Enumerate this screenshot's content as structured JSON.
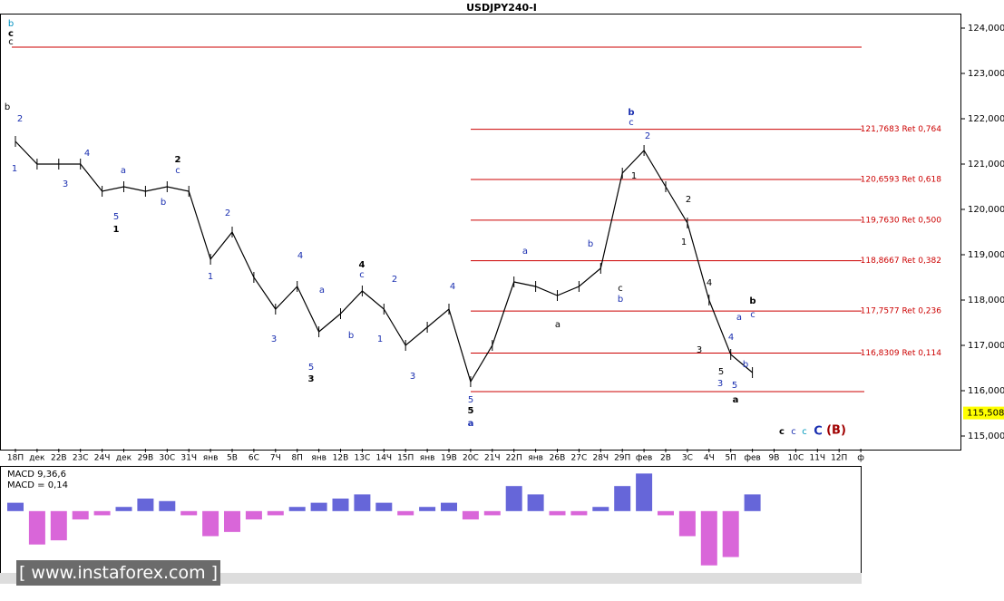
{
  "chart_data": {
    "type": "line",
    "title": "USDJPY240-I",
    "categories": [
      "18П",
      "дек",
      "22В",
      "23С",
      "24Ч",
      "дек",
      "29В",
      "30С",
      "31Ч",
      "янв",
      "5В",
      "6С",
      "7Ч",
      "8П",
      "янв",
      "12В",
      "13С",
      "14Ч",
      "15П",
      "янв",
      "19В",
      "20С",
      "21Ч",
      "22П",
      "янв",
      "26В",
      "27С",
      "28Ч",
      "29П",
      "фев",
      "2В",
      "3С",
      "4Ч",
      "5П",
      "фев",
      "9В",
      "10С",
      "11Ч",
      "12П",
      "ф"
    ],
    "series": [
      {
        "name": "USDJPY240-I",
        "color": "#000000",
        "values": [
          121.5,
          121.0,
          121.0,
          121.0,
          120.4,
          120.5,
          120.4,
          120.5,
          120.4,
          118.9,
          119.5,
          118.5,
          117.8,
          118.3,
          117.3,
          117.7,
          118.2,
          117.8,
          117.0,
          117.4,
          117.8,
          116.2,
          117.0,
          118.4,
          118.3,
          118.1,
          118.3,
          118.7,
          120.8,
          121.3,
          120.5,
          119.7,
          118.0,
          116.8,
          116.4,
          null,
          null,
          null,
          null,
          null
        ]
      }
    ],
    "ylim": [
      114.72,
      124.32
    ],
    "yticks": [
      {
        "value": 115,
        "label": "115,000"
      },
      {
        "value": 116,
        "label": "116,000"
      },
      {
        "value": 117,
        "label": "117,000"
      },
      {
        "value": 118,
        "label": "118,000"
      },
      {
        "value": 119,
        "label": "119,000"
      },
      {
        "value": 120,
        "label": "120,000"
      },
      {
        "value": 121,
        "label": "121,000"
      },
      {
        "value": 122,
        "label": "122,000"
      },
      {
        "value": 123,
        "label": "123,000"
      },
      {
        "value": 124,
        "label": "124,000"
      }
    ],
    "last_price": {
      "value": 115.508,
      "label": "115,508"
    },
    "levels": [
      {
        "value": 121.7683,
        "label": "121,7683 Ret 0,764"
      },
      {
        "value": 120.6593,
        "label": "120,6593 Ret 0,618"
      },
      {
        "value": 119.763,
        "label": "119,7630 Ret 0,500"
      },
      {
        "value": 118.8667,
        "label": "118,8667 Ret 0,382"
      },
      {
        "value": 117.7577,
        "label": "117,7577 Ret 0,236"
      },
      {
        "value": 116.8309,
        "label": "116,8309 Ret 0,114"
      }
    ],
    "level_color": "#cc0000",
    "lines": [
      123.58,
      115.98
    ],
    "annotations": [
      {
        "text": "b",
        "color": "#0090c0"
      },
      {
        "text": "c",
        "color": "#000"
      },
      {
        "text": "c",
        "color": "#000"
      },
      {
        "text": "2",
        "color": "#1a2fb0"
      },
      {
        "text": "1",
        "color": "#1a2fb0"
      },
      {
        "text": "b",
        "color": "#000"
      },
      {
        "text": "3",
        "color": "#1a2fb0"
      },
      {
        "text": "4",
        "color": "#1a2fb0"
      },
      {
        "text": "5",
        "color": "#1a2fb0"
      },
      {
        "text": "1",
        "color": "#000"
      },
      {
        "text": "a",
        "color": "#1a2fb0"
      },
      {
        "text": "b",
        "color": "#1a2fb0"
      },
      {
        "text": "2",
        "color": "#000"
      },
      {
        "text": "c",
        "color": "#1a2fb0"
      },
      {
        "text": "1",
        "color": "#1a2fb0"
      },
      {
        "text": "2",
        "color": "#1a2fb0"
      },
      {
        "text": "3",
        "color": "#1a2fb0"
      },
      {
        "text": "4",
        "color": "#1a2fb0"
      },
      {
        "text": "5",
        "color": "#1a2fb0"
      },
      {
        "text": "3",
        "color": "#000"
      },
      {
        "text": "a",
        "color": "#1a2fb0"
      },
      {
        "text": "b",
        "color": "#1a2fb0"
      },
      {
        "text": "4",
        "color": "#000"
      },
      {
        "text": "c",
        "color": "#1a2fb0"
      },
      {
        "text": "1",
        "color": "#1a2fb0"
      },
      {
        "text": "2",
        "color": "#1a2fb0"
      },
      {
        "text": "3",
        "color": "#1a2fb0"
      },
      {
        "text": "4",
        "color": "#1a2fb0"
      },
      {
        "text": "5",
        "color": "#1a2fb0"
      },
      {
        "text": "5",
        "color": "#000"
      },
      {
        "text": "a",
        "color": "#1a2fb0"
      },
      {
        "text": "a",
        "color": "#1a2fb0"
      },
      {
        "text": "a",
        "color": "#000"
      },
      {
        "text": "b",
        "color": "#1a2fb0"
      },
      {
        "text": "c",
        "color": "#000"
      },
      {
        "text": "b",
        "color": "#1a2fb0"
      },
      {
        "text": "b",
        "color": "#1a2fb0"
      },
      {
        "text": "c",
        "color": "#1a2fb0"
      },
      {
        "text": "2",
        "color": "#1a2fb0"
      },
      {
        "text": "1",
        "color": "#000"
      },
      {
        "text": "2",
        "color": "#000"
      },
      {
        "text": "1",
        "color": "#000"
      },
      {
        "text": "4",
        "color": "#000"
      },
      {
        "text": "3",
        "color": "#000"
      },
      {
        "text": "5",
        "color": "#000"
      },
      {
        "text": "3",
        "color": "#1a2fb0"
      },
      {
        "text": "5",
        "color": "#1a2fb0"
      },
      {
        "text": "a",
        "color": "#000"
      },
      {
        "text": "4",
        "color": "#1a2fb0"
      },
      {
        "text": "a",
        "color": "#1a2fb0"
      },
      {
        "text": "b",
        "color": "#000"
      },
      {
        "text": "c",
        "color": "#1a2fb0"
      },
      {
        "text": "b",
        "color": "#1a2fb0"
      },
      {
        "text": "c",
        "color": "#000"
      },
      {
        "text": "c",
        "color": "#1a2fb0"
      },
      {
        "text": "c",
        "color": "#0099bb"
      },
      {
        "text": "C",
        "color": "#1a2fb0"
      },
      {
        "text": "(B)",
        "color": "#a00000"
      }
    ],
    "macd": {
      "label": "MACD 9,36,6",
      "value_label": "MACD = 0,14",
      "color": "#cc33cc",
      "up_color": "#3333cc",
      "ylim": [
        -0.74,
        0.53
      ],
      "values": [
        0.1,
        -0.4,
        -0.35,
        -0.1,
        -0.05,
        0.05,
        0.15,
        0.12,
        -0.05,
        -0.3,
        -0.25,
        -0.1,
        -0.05,
        0.05,
        0.1,
        0.15,
        0.2,
        0.1,
        -0.05,
        0.05,
        0.1,
        -0.1,
        -0.05,
        0.3,
        0.2,
        -0.05,
        -0.05,
        0.05,
        0.3,
        0.45,
        -0.05,
        -0.3,
        -0.65,
        -0.55,
        0.2,
        null,
        null,
        null,
        null,
        null
      ]
    },
    "watermark": "[ www.instaforex.com ]"
  }
}
